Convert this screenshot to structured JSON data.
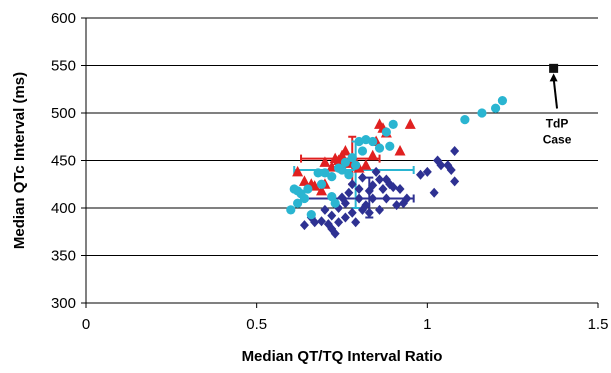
{
  "chart_data": {
    "type": "scatter",
    "xlabel": "Median QT/TQ Interval Ratio",
    "ylabel": "Median QTc Interval (ms)",
    "xlim": [
      0,
      1.5
    ],
    "ylim": [
      300,
      600
    ],
    "xticks": [
      0,
      0.5,
      1,
      1.5
    ],
    "xtick_labels": [
      "0",
      "0.5",
      "1",
      "1.5"
    ],
    "yticks": [
      300,
      350,
      400,
      450,
      500,
      550,
      600
    ],
    "ytick_labels": [
      "300",
      "350",
      "400",
      "450",
      "500",
      "550",
      "600"
    ],
    "grid": "horizontal",
    "legend": "none",
    "series": [
      {
        "marker": "diamond",
        "color": "#2e3192",
        "points": [
          [
            0.64,
            382
          ],
          [
            0.66,
            390
          ],
          [
            0.67,
            385
          ],
          [
            0.69,
            386
          ],
          [
            0.7,
            398
          ],
          [
            0.71,
            383
          ],
          [
            0.72,
            378
          ],
          [
            0.72,
            392
          ],
          [
            0.73,
            373
          ],
          [
            0.74,
            385
          ],
          [
            0.74,
            400
          ],
          [
            0.75,
            411
          ],
          [
            0.76,
            390
          ],
          [
            0.76,
            405
          ],
          [
            0.77,
            416
          ],
          [
            0.78,
            395
          ],
          [
            0.78,
            425
          ],
          [
            0.79,
            385
          ],
          [
            0.8,
            410
          ],
          [
            0.8,
            420
          ],
          [
            0.81,
            398
          ],
          [
            0.81,
            432
          ],
          [
            0.82,
            403
          ],
          [
            0.83,
            395
          ],
          [
            0.83,
            418
          ],
          [
            0.84,
            410
          ],
          [
            0.84,
            424
          ],
          [
            0.85,
            438
          ],
          [
            0.86,
            398
          ],
          [
            0.86,
            430
          ],
          [
            0.87,
            420
          ],
          [
            0.88,
            410
          ],
          [
            0.88,
            430
          ],
          [
            0.89,
            425
          ],
          [
            0.9,
            422
          ],
          [
            0.91,
            403
          ],
          [
            0.92,
            420
          ],
          [
            0.93,
            405
          ],
          [
            0.94,
            410
          ],
          [
            0.98,
            435
          ],
          [
            1.0,
            438
          ],
          [
            1.02,
            416
          ],
          [
            1.03,
            450
          ],
          [
            1.04,
            445
          ],
          [
            1.06,
            445
          ],
          [
            1.07,
            440
          ],
          [
            1.08,
            428
          ],
          [
            1.08,
            460
          ]
        ],
        "errorbar": {
          "center": [
            0.83,
            410
          ],
          "x_range": [
            0.63,
            0.96
          ],
          "y_range": [
            390,
            432
          ]
        }
      },
      {
        "marker": "triangle",
        "color": "#e02020",
        "points": [
          [
            0.62,
            438
          ],
          [
            0.64,
            428
          ],
          [
            0.66,
            425
          ],
          [
            0.67,
            423
          ],
          [
            0.69,
            418
          ],
          [
            0.7,
            425
          ],
          [
            0.7,
            448
          ],
          [
            0.72,
            443
          ],
          [
            0.73,
            452
          ],
          [
            0.74,
            450
          ],
          [
            0.75,
            455
          ],
          [
            0.76,
            460
          ],
          [
            0.77,
            447
          ],
          [
            0.78,
            452
          ],
          [
            0.79,
            448
          ],
          [
            0.8,
            442
          ],
          [
            0.82,
            445
          ],
          [
            0.84,
            455
          ],
          [
            0.85,
            470
          ],
          [
            0.86,
            488
          ],
          [
            0.87,
            484
          ],
          [
            0.88,
            479
          ],
          [
            0.92,
            460
          ],
          [
            0.95,
            488
          ]
        ],
        "errorbar": {
          "center": [
            0.78,
            452
          ],
          "x_range": [
            0.63,
            0.86
          ],
          "y_range": [
            425,
            475
          ]
        }
      },
      {
        "marker": "circle",
        "color": "#2ab5d1",
        "points": [
          [
            0.6,
            398
          ],
          [
            0.61,
            420
          ],
          [
            0.62,
            405
          ],
          [
            0.62,
            418
          ],
          [
            0.63,
            415
          ],
          [
            0.64,
            410
          ],
          [
            0.65,
            420
          ],
          [
            0.66,
            393
          ],
          [
            0.68,
            437
          ],
          [
            0.69,
            425
          ],
          [
            0.7,
            437
          ],
          [
            0.72,
            412
          ],
          [
            0.72,
            433
          ],
          [
            0.73,
            405
          ],
          [
            0.74,
            442
          ],
          [
            0.75,
            440
          ],
          [
            0.76,
            448
          ],
          [
            0.77,
            435
          ],
          [
            0.78,
            453
          ],
          [
            0.79,
            445
          ],
          [
            0.8,
            470
          ],
          [
            0.81,
            460
          ],
          [
            0.82,
            472
          ],
          [
            0.84,
            470
          ],
          [
            0.86,
            463
          ],
          [
            0.88,
            480
          ],
          [
            0.89,
            465
          ],
          [
            0.9,
            488
          ],
          [
            1.11,
            493
          ],
          [
            1.16,
            500
          ],
          [
            1.2,
            505
          ],
          [
            1.22,
            513
          ]
        ],
        "errorbar": {
          "center": [
            0.79,
            440
          ],
          "x_range": [
            0.61,
            0.96
          ],
          "y_range": [
            400,
            470
          ]
        }
      },
      {
        "name": "TdP Case",
        "marker": "square",
        "color": "#111111",
        "points": [
          [
            1.37,
            547
          ]
        ]
      }
    ],
    "annotations": [
      {
        "text_lines": [
          "TdP",
          "Case"
        ],
        "target": [
          1.37,
          547
        ],
        "text_at": [
          1.38,
          490
        ]
      }
    ]
  }
}
